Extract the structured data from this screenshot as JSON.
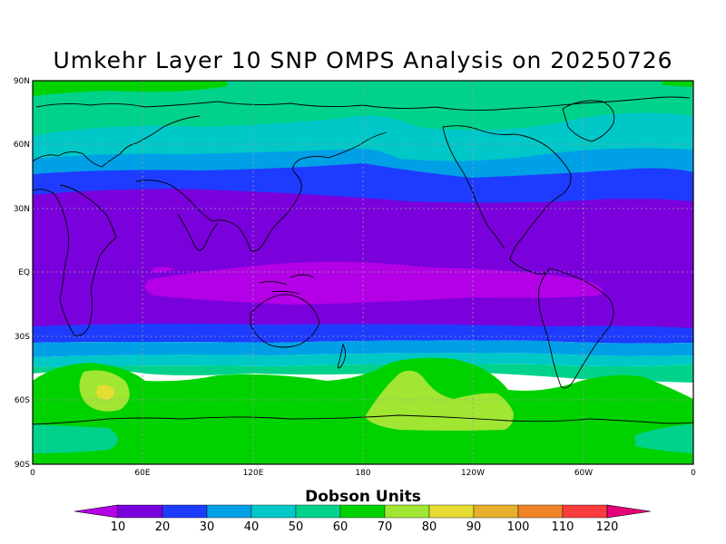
{
  "title": "Umkehr Layer 10 SNP OMPS Analysis on 20250726",
  "colorbar": {
    "title": "Dobson Units",
    "labels": [
      "10",
      "20",
      "30",
      "40",
      "50",
      "60",
      "70",
      "80",
      "90",
      "100",
      "110",
      "120"
    ],
    "low_color": "#b400e6",
    "high_color": "#e6007a",
    "colors": [
      "#7a00dc",
      "#1e3cff",
      "#00a0e6",
      "#00c8c8",
      "#00d28c",
      "#00d200",
      "#a0e632",
      "#e6dc32",
      "#e6af2d",
      "#f08228",
      "#fa3c3c"
    ]
  },
  "map": {
    "lat_labels": [
      "90N",
      "60N",
      "30N",
      "EQ",
      "30S",
      "60S",
      "90S"
    ],
    "lon_labels": [
      "0",
      "60E",
      "120E",
      "180",
      "120W",
      "60W",
      "0"
    ],
    "fill_colors": {
      "purple_core": "#7a00dc",
      "magenta_eq": "#b400e6",
      "blue": "#1e3cff",
      "lightblue": "#00a0e6",
      "cyan": "#00c8c8",
      "teal": "#00d28c",
      "green": "#00d200",
      "lightgreen": "#a0e632",
      "yellow": "#e6dc32"
    }
  }
}
